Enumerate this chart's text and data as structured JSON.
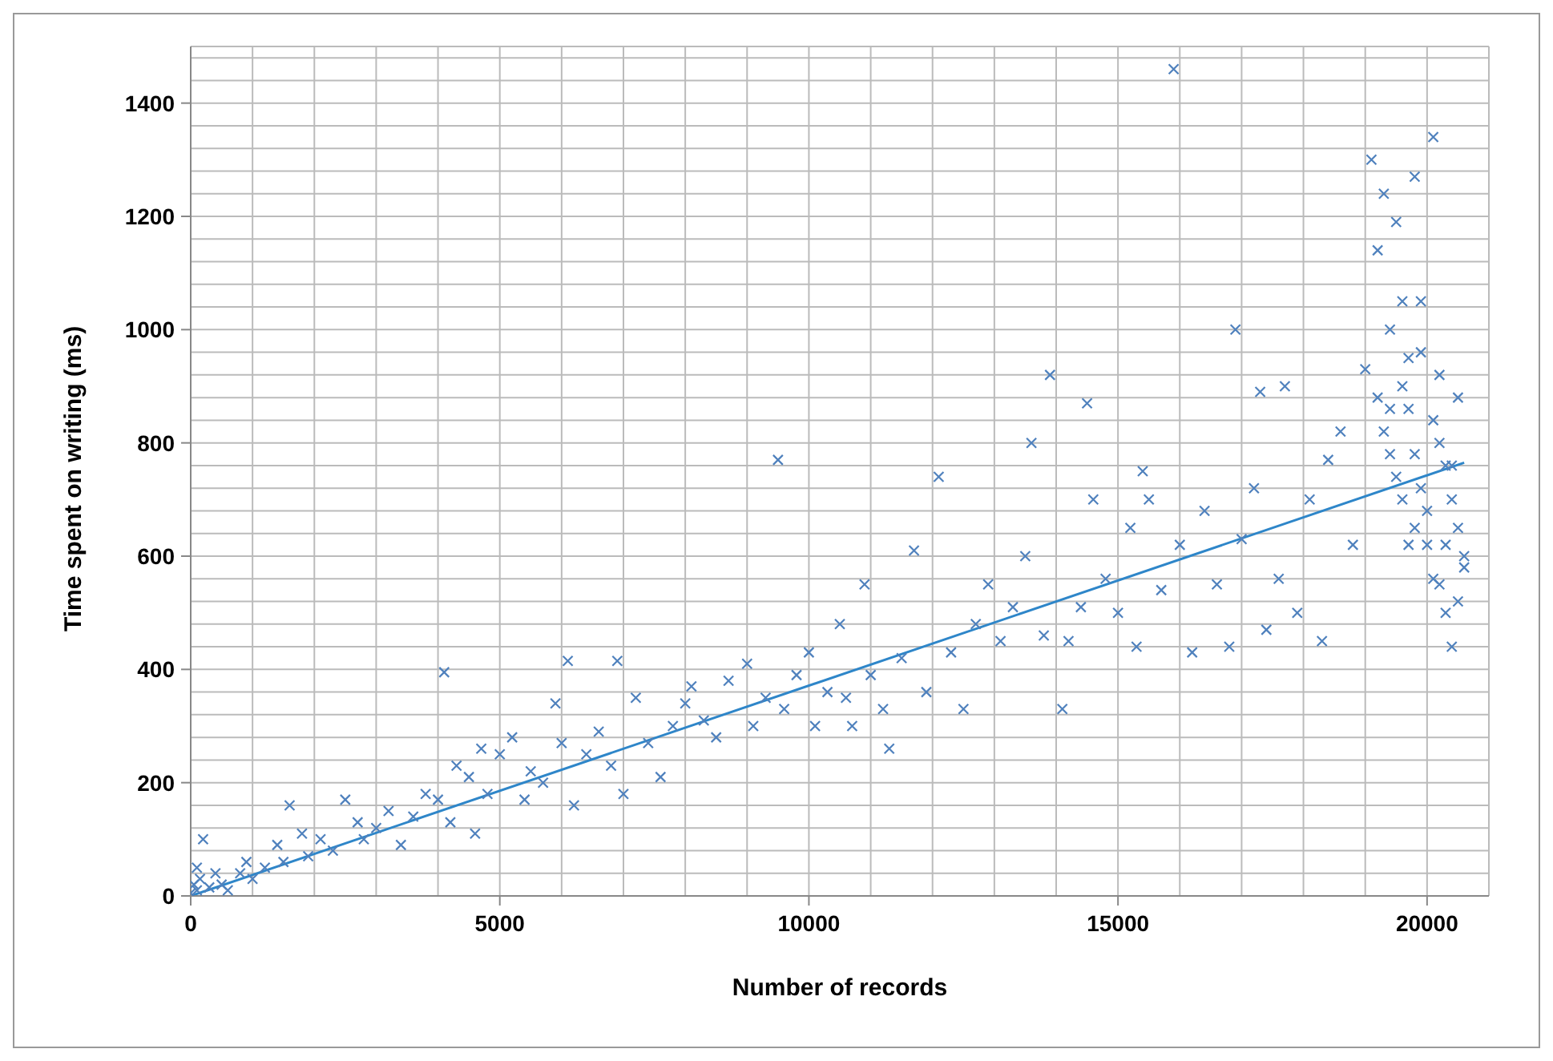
{
  "chart_data": {
    "type": "scatter",
    "xlabel": "Number of records",
    "ylabel": "Time spent on writing (ms)",
    "xlim": [
      0,
      21000
    ],
    "xticks": [
      0,
      {
        "value": 1000,
        "label": null
      },
      {
        "value": 2000,
        "label": null
      },
      {
        "value": 3000,
        "label": null
      },
      {
        "value": 4000,
        "label": null
      },
      5000,
      {
        "value": 6000,
        "label": null
      },
      {
        "value": 7000,
        "label": null
      },
      {
        "value": 8000,
        "label": null
      },
      {
        "value": 9000,
        "label": null
      },
      10000,
      {
        "value": 11000,
        "label": null
      },
      {
        "value": 12000,
        "label": null
      },
      {
        "value": 13000,
        "label": null
      },
      {
        "value": 14000,
        "label": null
      },
      15000,
      {
        "value": 16000,
        "label": null
      },
      {
        "value": 17000,
        "label": null
      },
      {
        "value": 18000,
        "label": null
      },
      {
        "value": 19000,
        "label": null
      },
      20000,
      {
        "value": 21000,
        "label": null
      }
    ],
    "ylim": [
      0,
      1500
    ],
    "yticks": [
      0,
      {
        "value": 40,
        "label": null
      },
      {
        "value": 80,
        "label": null
      },
      {
        "value": 120,
        "label": null
      },
      {
        "value": 160,
        "label": null
      },
      200,
      {
        "value": 240,
        "label": null
      },
      {
        "value": 280,
        "label": null
      },
      {
        "value": 320,
        "label": null
      },
      {
        "value": 360,
        "label": null
      },
      400,
      {
        "value": 440,
        "label": null
      },
      {
        "value": 480,
        "label": null
      },
      {
        "value": 520,
        "label": null
      },
      {
        "value": 560,
        "label": null
      },
      600,
      {
        "value": 640,
        "label": null
      },
      {
        "value": 680,
        "label": null
      },
      {
        "value": 720,
        "label": null
      },
      {
        "value": 760,
        "label": null
      },
      800,
      {
        "value": 840,
        "label": null
      },
      {
        "value": 880,
        "label": null
      },
      {
        "value": 920,
        "label": null
      },
      {
        "value": 960,
        "label": null
      },
      1000,
      {
        "value": 1040,
        "label": null
      },
      {
        "value": 1080,
        "label": null
      },
      {
        "value": 1120,
        "label": null
      },
      {
        "value": 1160,
        "label": null
      },
      1200,
      {
        "value": 1240,
        "label": null
      },
      {
        "value": 1280,
        "label": null
      },
      {
        "value": 1320,
        "label": null
      },
      {
        "value": 1360,
        "label": null
      },
      1400,
      {
        "value": 1440,
        "label": null
      },
      {
        "value": 1480,
        "label": null
      }
    ],
    "grid": true,
    "series": [
      {
        "color": "#4f81bd",
        "marker": "cross",
        "x": [
          0,
          50,
          100,
          150,
          200,
          100,
          300,
          400,
          500,
          600,
          800,
          900,
          1000,
          1200,
          1400,
          1500,
          1600,
          1800,
          1900,
          2100,
          2300,
          2500,
          2700,
          2800,
          3000,
          3200,
          3400,
          3600,
          3800,
          4000,
          4100,
          4200,
          4300,
          4500,
          4600,
          4700,
          4800,
          5000,
          5200,
          5400,
          5500,
          5700,
          5900,
          6000,
          6100,
          6200,
          6400,
          6600,
          6800,
          6900,
          7000,
          7200,
          7400,
          7600,
          7800,
          8000,
          8100,
          8300,
          8500,
          8700,
          9000,
          9100,
          9300,
          9500,
          9600,
          9800,
          10000,
          10100,
          10300,
          10500,
          10600,
          10700,
          10900,
          11000,
          11200,
          11300,
          11500,
          11700,
          11900,
          12100,
          12300,
          12500,
          12700,
          12900,
          13100,
          13300,
          13500,
          13600,
          13800,
          13900,
          14100,
          14200,
          14400,
          14500,
          14600,
          14800,
          15000,
          15200,
          15300,
          15400,
          15500,
          15700,
          15900,
          16000,
          16200,
          16400,
          16600,
          16800,
          16900,
          17000,
          17200,
          17300,
          17400,
          17600,
          17700,
          17900,
          18100,
          18300,
          18400,
          18600,
          18800,
          19000,
          19100,
          19200,
          19300,
          19400,
          19500,
          19600,
          19700,
          19800,
          19900,
          19200,
          19300,
          19400,
          19500,
          19600,
          19700,
          19800,
          19900,
          20000,
          20100,
          20100,
          20200,
          20300,
          20400,
          20500,
          20600,
          20200,
          20300,
          20400,
          20500,
          20600,
          20000,
          19800,
          20100,
          20200,
          20500,
          19600,
          19900,
          19400,
          20300,
          20400,
          19700
        ],
        "values": [
          5,
          20,
          10,
          30,
          100,
          50,
          15,
          40,
          20,
          10,
          40,
          60,
          30,
          50,
          90,
          60,
          160,
          110,
          70,
          100,
          80,
          170,
          130,
          100,
          120,
          150,
          90,
          140,
          180,
          170,
          395,
          130,
          230,
          210,
          110,
          260,
          180,
          250,
          280,
          170,
          220,
          200,
          340,
          270,
          415,
          160,
          250,
          290,
          230,
          415,
          180,
          350,
          270,
          210,
          300,
          340,
          370,
          310,
          280,
          380,
          410,
          300,
          350,
          770,
          330,
          390,
          430,
          300,
          360,
          480,
          350,
          300,
          550,
          390,
          330,
          260,
          420,
          610,
          360,
          740,
          430,
          330,
          480,
          550,
          450,
          510,
          600,
          800,
          460,
          920,
          330,
          450,
          510,
          870,
          700,
          560,
          500,
          650,
          440,
          750,
          700,
          540,
          1460,
          620,
          430,
          680,
          550,
          440,
          1000,
          630,
          720,
          890,
          470,
          560,
          900,
          500,
          700,
          450,
          770,
          820,
          620,
          930,
          1300,
          1140,
          1240,
          1000,
          1190,
          1050,
          950,
          1270,
          1050,
          880,
          820,
          780,
          740,
          700,
          860,
          780,
          720,
          680,
          1340,
          840,
          800,
          760,
          700,
          650,
          600,
          550,
          500,
          440,
          520,
          580,
          620,
          650,
          560,
          920,
          880,
          900,
          960,
          860,
          620,
          760,
          620
        ]
      },
      {
        "type": "line",
        "color": "#2e86c9",
        "x": [
          0,
          20600
        ],
        "values": [
          0,
          765
        ]
      }
    ]
  }
}
